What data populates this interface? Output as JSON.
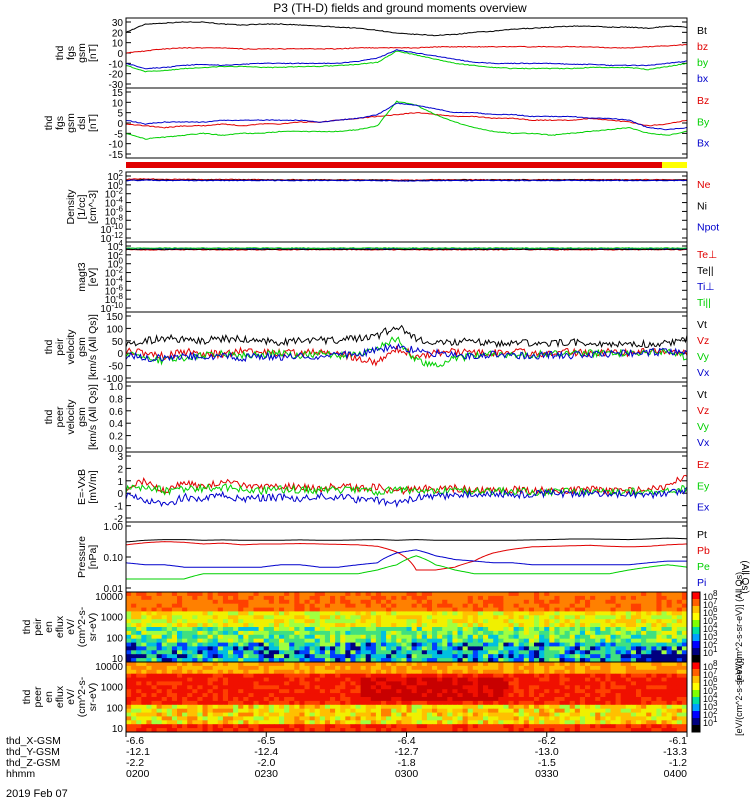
{
  "title": "P3 (TH-D) fields and ground moments overview",
  "date_label": "2019 Feb 07",
  "colors": {
    "black": "#000000",
    "red": "#e00000",
    "green": "#00d000",
    "blue": "#0000cc",
    "yellow": "#ffff00"
  },
  "chart_data": [
    {
      "type": "line",
      "panel": "fgs_gsm",
      "ylabel": [
        "thd",
        "fgs",
        "gsm",
        "[nT]"
      ],
      "ticks": [
        "30",
        "20",
        "10",
        "0",
        "-10",
        "-20",
        "-30"
      ],
      "ylim": [
        -30,
        30
      ],
      "series": [
        {
          "name": "Bt",
          "color": "red_black",
          "values": [
            20,
            28,
            29,
            30,
            30,
            28,
            27,
            28,
            28,
            27,
            26,
            25,
            24,
            22,
            19,
            18,
            17,
            18,
            20,
            21,
            23,
            24,
            25,
            26,
            26,
            25,
            25,
            24,
            26,
            25
          ]
        },
        {
          "name": "bz",
          "values": [
            0,
            2,
            4,
            5,
            5,
            5,
            4,
            4,
            4,
            4,
            4,
            4,
            5,
            5,
            5,
            5,
            6,
            6,
            6,
            6,
            6,
            6,
            6,
            6,
            6,
            5,
            5,
            6,
            7,
            8
          ]
        },
        {
          "name": "by",
          "values": [
            -12,
            -18,
            -17,
            -15,
            -14,
            -13,
            -13,
            -14,
            -14,
            -13,
            -13,
            -12,
            -11,
            -9,
            2,
            -2,
            -6,
            -10,
            -12,
            -14,
            -15,
            -15,
            -15,
            -15,
            -14,
            -14,
            -14,
            -16,
            -13,
            -10
          ]
        },
        {
          "name": "bx",
          "values": [
            -10,
            -15,
            -14,
            -12,
            -11,
            -12,
            -11,
            -10,
            -10,
            -10,
            -10,
            -10,
            -8,
            -5,
            3,
            0,
            -3,
            -6,
            -9,
            -10,
            -10,
            -10,
            -10,
            -11,
            -11,
            -12,
            -12,
            -12,
            -10,
            -8
          ]
        }
      ]
    },
    {
      "type": "line",
      "panel": "fgs_gse",
      "ylabel": [
        "thd",
        "fgs",
        "gsm",
        "dsl",
        "[nT]"
      ],
      "ticks": [
        "15",
        "10",
        "5",
        "0",
        "-5",
        "-10",
        "-15"
      ],
      "ylim": [
        -18,
        15
      ],
      "series": [
        {
          "name": "Bz",
          "values": [
            -2,
            -3,
            -4,
            -3,
            -3,
            -2,
            -3,
            -2,
            -2,
            -1,
            -1,
            0,
            1,
            2,
            3,
            4,
            3,
            2,
            2,
            1,
            1,
            0,
            0,
            0,
            1,
            0,
            -1,
            -3,
            -2,
            0
          ]
        },
        {
          "name": "By",
          "values": [
            -7,
            -10,
            -9,
            -8,
            -7,
            -8,
            -7,
            -7,
            -6,
            -6,
            -6,
            -6,
            -5,
            -3,
            10,
            8,
            3,
            -1,
            -4,
            -6,
            -7,
            -7,
            -8,
            -7,
            -6,
            -5,
            -4,
            -7,
            -8,
            -6
          ]
        },
        {
          "name": "Bx",
          "values": [
            0,
            -2,
            -1,
            -1,
            -1,
            0,
            0,
            0,
            0,
            0,
            -1,
            0,
            1,
            3,
            9,
            8,
            6,
            4,
            4,
            3,
            3,
            2,
            2,
            2,
            1,
            1,
            0,
            -4,
            -5,
            -4
          ]
        }
      ]
    },
    {
      "type": "line",
      "panel": "density",
      "ylabel": [
        "Density",
        "[1/cc]",
        "[cm^-3]"
      ],
      "ticks": [
        "10^2",
        "10^0",
        "10^-2",
        "10^-4",
        "10^-6",
        "10^-8",
        "10^-10",
        "10^-12"
      ],
      "ylim": [
        -13,
        2
      ],
      "series": [
        {
          "name": "Ne",
          "values": [
            1.2,
            1.3,
            1.2,
            1.2,
            1.1,
            1.2,
            1.2,
            1.1,
            1.1,
            1.1,
            1.1,
            1.1,
            1.1,
            1.1,
            1.0,
            1.0,
            1.1,
            1.1,
            1.1,
            1.1,
            1.1,
            1.1,
            1.1,
            1.1,
            1.1,
            1.1,
            1.1,
            1.1,
            1.1,
            1.1
          ]
        },
        {
          "name": "Ni",
          "values": [
            1.0,
            1.1,
            1.0,
            1.0,
            1.0,
            1.0,
            1.0,
            1.0,
            1.0,
            1.0,
            1.0,
            1.0,
            1.0,
            1.0,
            0.9,
            0.9,
            1.0,
            1.0,
            1.0,
            1.0,
            1.0,
            1.0,
            1.0,
            1.0,
            1.0,
            1.0,
            1.0,
            1.0,
            1.0,
            1.0
          ]
        },
        {
          "name": "Npot",
          "values": [
            0.9,
            1.0,
            0.9,
            0.9,
            0.9,
            0.9,
            0.9,
            0.9,
            0.9,
            0.9,
            0.9,
            0.9,
            0.9,
            0.9,
            0.8,
            0.8,
            0.9,
            0.9,
            0.9,
            0.9,
            0.9,
            0.9,
            0.9,
            0.9,
            0.9,
            0.9,
            0.9,
            0.9,
            0.9,
            0.9
          ]
        }
      ]
    },
    {
      "type": "line",
      "panel": "temperature",
      "ylabel": [
        "magt3",
        "[eV]"
      ],
      "ticks": [
        "10^4",
        "10^2",
        "10^0",
        "10^-2",
        "10^-4",
        "10^-6",
        "10^-8",
        "10^-10"
      ],
      "ylim": [
        -11,
        4
      ],
      "series": [
        {
          "name": "Te⊥",
          "values": [
            3.1,
            3.1,
            3.1,
            3.1,
            3.1,
            3.1,
            3.1,
            3.1,
            3.1,
            3.1,
            3.1,
            3.1,
            3.1,
            3.1,
            3.1,
            3.1,
            3.1,
            3.1,
            3.1,
            3.1,
            3.1,
            3.1,
            3.1,
            3.1,
            3.1,
            3.1,
            3.1,
            3.1,
            3.1,
            3.1
          ]
        },
        {
          "name": "Te||",
          "values": [
            3.2,
            3.2,
            3.2,
            3.2,
            3.2,
            3.2,
            3.2,
            3.2,
            3.2,
            3.2,
            3.2,
            3.2,
            3.2,
            3.2,
            3.2,
            3.2,
            3.2,
            3.2,
            3.2,
            3.2,
            3.2,
            3.2,
            3.2,
            3.2,
            3.2,
            3.2,
            3.2,
            3.2,
            3.2,
            3.2
          ]
        },
        {
          "name": "Ti⊥",
          "values": [
            3.4,
            3.4,
            3.4,
            3.4,
            3.4,
            3.4,
            3.4,
            3.4,
            3.4,
            3.4,
            3.4,
            3.4,
            3.4,
            3.4,
            3.4,
            3.4,
            3.4,
            3.4,
            3.4,
            3.4,
            3.4,
            3.4,
            3.4,
            3.4,
            3.4,
            3.4,
            3.4,
            3.4,
            3.4,
            3.4
          ]
        },
        {
          "name": "Ti||",
          "values": [
            3.5,
            3.5,
            3.5,
            3.5,
            3.5,
            3.5,
            3.5,
            3.5,
            3.5,
            3.5,
            3.5,
            3.5,
            3.5,
            3.5,
            3.5,
            3.5,
            3.5,
            3.5,
            3.5,
            3.5,
            3.5,
            3.5,
            3.5,
            3.5,
            3.5,
            3.5,
            3.5,
            3.5,
            3.5,
            3.5
          ]
        }
      ]
    },
    {
      "type": "line",
      "panel": "peir_velocity",
      "ylabel": [
        "thd",
        "peir",
        "velocity",
        "gsm",
        "[km/s (All Qs)]"
      ],
      "ticks": [
        "150",
        "100",
        "50",
        "0",
        "-50",
        "-100"
      ],
      "ylim": [
        -100,
        150
      ],
      "series": [
        {
          "name": "Vt",
          "values": [
            40,
            50,
            60,
            55,
            50,
            60,
            55,
            50,
            45,
            50,
            55,
            50,
            60,
            70,
            110,
            60,
            40,
            45,
            50,
            40,
            45,
            40,
            40,
            45,
            40,
            35,
            40,
            35,
            40,
            60
          ]
        },
        {
          "name": "Vz",
          "values": [
            10,
            0,
            -10,
            5,
            0,
            -5,
            10,
            5,
            0,
            0,
            5,
            0,
            -20,
            -40,
            20,
            -10,
            0,
            5,
            0,
            0,
            5,
            0,
            0,
            5,
            0,
            5,
            0,
            10,
            5,
            0
          ]
        },
        {
          "name": "Vy",
          "values": [
            0,
            -20,
            -30,
            -20,
            -10,
            0,
            -10,
            -5,
            0,
            -10,
            0,
            -10,
            0,
            20,
            60,
            -30,
            -50,
            -20,
            -10,
            0,
            -10,
            -5,
            0,
            -5,
            0,
            5,
            0,
            5,
            10,
            -20
          ]
        },
        {
          "name": "Vx",
          "values": [
            -10,
            -20,
            -20,
            -10,
            -15,
            -10,
            -20,
            -10,
            -15,
            -10,
            -15,
            -10,
            0,
            10,
            30,
            10,
            0,
            -5,
            -10,
            -5,
            -10,
            -10,
            -5,
            -10,
            -5,
            -5,
            0,
            5,
            5,
            0
          ]
        }
      ]
    },
    {
      "type": "line",
      "panel": "peer_velocity",
      "ylabel": [
        "thd",
        "peer",
        "velocity",
        "gsm",
        "[km/s (All Qs)]"
      ],
      "ticks": [
        "1.0",
        "0.8",
        "0.6",
        "0.4",
        "0.2",
        "0.0"
      ],
      "ylim": [
        0,
        1
      ],
      "series": [
        {
          "name": "Vt",
          "values": []
        },
        {
          "name": "Vz",
          "values": []
        },
        {
          "name": "Vy",
          "values": []
        },
        {
          "name": "Vx",
          "values": []
        }
      ]
    },
    {
      "type": "line",
      "panel": "efield",
      "ylabel": [
        "E=-VxB",
        "[mV/m]"
      ],
      "ticks": [
        "3",
        "2",
        "1",
        "0",
        "-1",
        "-2"
      ],
      "ylim": [
        -2,
        3
      ],
      "series": [
        {
          "name": "Ez",
          "values": [
            0.5,
            1.0,
            0.2,
            0.8,
            0.5,
            1.0,
            0.6,
            0.4,
            0.6,
            0.5,
            0.3,
            0.6,
            0.4,
            0.5,
            0.0,
            0.5,
            0.3,
            0.4,
            0.3,
            0.2,
            0.3,
            0.2,
            0.3,
            0.2,
            0.3,
            0.2,
            0.2,
            0.3,
            0.5,
            1.5
          ]
        },
        {
          "name": "Ey",
          "values": [
            0.3,
            0.5,
            0.2,
            0.3,
            0.4,
            0.5,
            0.3,
            0.2,
            0.3,
            0.3,
            0.2,
            0.3,
            0.2,
            0.1,
            0.3,
            0.2,
            0.2,
            0.2,
            0.1,
            0.1,
            0.2,
            0.1,
            0.1,
            0.1,
            0.1,
            0.1,
            0.1,
            0.2,
            0.2,
            0.4
          ]
        },
        {
          "name": "Ex",
          "values": [
            -0.2,
            -0.5,
            -1.0,
            -0.3,
            -0.5,
            -0.2,
            -0.5,
            -0.4,
            -0.3,
            -0.4,
            -0.2,
            -0.3,
            -0.5,
            -0.6,
            -0.8,
            -0.3,
            -0.2,
            -0.2,
            -0.1,
            -0.1,
            -0.1,
            -0.1,
            0.0,
            -0.1,
            0.0,
            -0.1,
            0.0,
            -0.2,
            -0.1,
            0.3
          ]
        }
      ]
    },
    {
      "type": "line",
      "panel": "pressure",
      "ylabel": [
        "Pressure",
        "[nPa]"
      ],
      "yscale": "log",
      "ticks": [
        "1.00",
        "0.10",
        "0.01"
      ],
      "ylim": [
        0.01,
        1.2
      ],
      "side_label": "(All Qs)",
      "series": [
        {
          "name": "Pt",
          "values": [
            0.35,
            0.4,
            0.42,
            0.42,
            0.4,
            0.41,
            0.4,
            0.4,
            0.4,
            0.41,
            0.4,
            0.4,
            0.41,
            0.42,
            0.4,
            0.42,
            0.4,
            0.4,
            0.4,
            0.4,
            0.4,
            0.41,
            0.42,
            0.44,
            0.44,
            0.43,
            0.42,
            0.44,
            0.47,
            0.45
          ]
        },
        {
          "name": "Pb",
          "values": [
            0.28,
            0.33,
            0.36,
            0.34,
            0.3,
            0.32,
            0.28,
            0.3,
            0.3,
            0.31,
            0.3,
            0.29,
            0.28,
            0.25,
            0.16,
            0.04,
            0.04,
            0.05,
            0.08,
            0.15,
            0.2,
            0.24,
            0.25,
            0.26,
            0.27,
            0.25,
            0.24,
            0.25,
            0.28,
            0.3
          ]
        },
        {
          "name": "Pe",
          "values": [
            0.02,
            0.02,
            0.02,
            0.02,
            0.03,
            0.03,
            0.03,
            0.03,
            0.03,
            0.03,
            0.03,
            0.03,
            0.03,
            0.04,
            0.06,
            0.12,
            0.06,
            0.04,
            0.03,
            0.03,
            0.03,
            0.03,
            0.03,
            0.03,
            0.03,
            0.03,
            0.04,
            0.05,
            0.06,
            0.05
          ]
        },
        {
          "name": "Pi",
          "values": [
            0.07,
            0.06,
            0.06,
            0.05,
            0.05,
            0.05,
            0.05,
            0.05,
            0.06,
            0.06,
            0.05,
            0.05,
            0.06,
            0.07,
            0.15,
            0.19,
            0.12,
            0.09,
            0.08,
            0.07,
            0.07,
            0.06,
            0.06,
            0.06,
            0.06,
            0.06,
            0.06,
            0.07,
            0.08,
            0.08
          ]
        }
      ]
    },
    {
      "type": "heatmap",
      "panel": "peir_spec",
      "ylabel": [
        "thd",
        "peir",
        "en",
        "eflux",
        "eV/",
        "(cm^2-s-",
        "sr-eV)"
      ],
      "ticks": [
        "10000",
        "1000",
        "100",
        "10"
      ],
      "yscale": "log"
    },
    {
      "type": "heatmap",
      "panel": "peer_spec",
      "ylabel": [
        "thd",
        "peer",
        "en",
        "eflux",
        "eV/",
        "(cm^2-s-",
        "sr-eV)"
      ],
      "ticks": [
        "10000",
        "1000",
        "100",
        "10"
      ],
      "yscale": "log"
    }
  ],
  "colorbar": {
    "upper_ticks": [
      "10^8",
      "10^7",
      "10^6",
      "10^5",
      "10^4",
      "10^3",
      "10^2",
      "10^1"
    ],
    "lower_ticks": [
      "10^8",
      "10^7",
      "10^6",
      "10^5",
      "10^4",
      "10^3",
      "10^2",
      "10^1"
    ],
    "label_upper": "[eV/(cm^2-s-sr-eV)] (All Qs)",
    "label_lower": "[eV/(cm^2-s-sr-eV)]"
  },
  "xaxis": {
    "row_labels": [
      "thd_X-GSM",
      "thd_Y-GSM",
      "thd_Z-GSM",
      "hhmm"
    ],
    "columns": [
      [
        "-6.6",
        "-12.1",
        "-2.2",
        "0200"
      ],
      [
        "-6.5",
        "-12.4",
        "-2.0",
        "0230"
      ],
      [
        "-6.4",
        "-12.7",
        "-1.8",
        "0300"
      ],
      [
        "-6.2",
        "-13.0",
        "-1.5",
        "0330"
      ],
      [
        "-6.1",
        "-13.3",
        "-1.2",
        "0400"
      ]
    ]
  }
}
